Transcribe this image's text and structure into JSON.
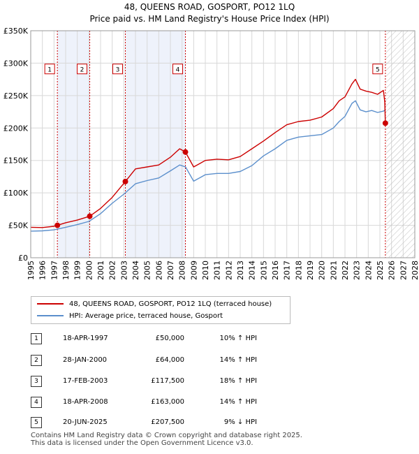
{
  "title": {
    "line1": "48, QUEENS ROAD, GOSPORT, PO12 1LQ",
    "line2": "Price paid vs. HM Land Registry's House Price Index (HPI)"
  },
  "legend": {
    "red_label": "48, QUEENS ROAD, GOSPORT, PO12 1LQ (terraced house)",
    "blue_label": "HPI: Average price, terraced house, Gosport"
  },
  "colors": {
    "price_line": "#cc0000",
    "hpi_line": "#5b8fcc",
    "shade": "#eef2fb",
    "grid": "#d8d8d8",
    "marker_dash": "#cc0000"
  },
  "sales": [
    {
      "num": "1",
      "date": "18-APR-1997",
      "price": "£50,000",
      "hpi": "10% ↑ HPI"
    },
    {
      "num": "2",
      "date": "28-JAN-2000",
      "price": "£64,000",
      "hpi": "14% ↑ HPI"
    },
    {
      "num": "3",
      "date": "17-FEB-2003",
      "price": "£117,500",
      "hpi": "18% ↑ HPI"
    },
    {
      "num": "4",
      "date": "18-APR-2008",
      "price": "£163,000",
      "hpi": "14% ↑ HPI"
    },
    {
      "num": "5",
      "date": "20-JUN-2025",
      "price": "£207,500",
      "hpi": "9% ↓ HPI"
    }
  ],
  "footer": {
    "line1": "Contains HM Land Registry data © Crown copyright and database right 2025.",
    "line2": "This data is licensed under the Open Government Licence v3.0."
  },
  "chart_data": {
    "type": "line",
    "title": "48, QUEENS ROAD, GOSPORT, PO12 1LQ — Price paid vs. HM Land Registry's House Price Index (HPI)",
    "xlim": [
      1995,
      2028
    ],
    "ylim": [
      0,
      350000
    ],
    "x_ticks": [
      "1995",
      "1996",
      "1997",
      "1998",
      "1999",
      "2000",
      "2001",
      "2002",
      "2003",
      "2004",
      "2005",
      "2006",
      "2007",
      "2008",
      "2009",
      "2010",
      "2011",
      "2012",
      "2013",
      "2014",
      "2015",
      "2016",
      "2017",
      "2018",
      "2019",
      "2020",
      "2021",
      "2022",
      "2023",
      "2024",
      "2025",
      "2026",
      "2027",
      "2028"
    ],
    "y_ticks": [
      {
        "value": 0,
        "label": "£0"
      },
      {
        "value": 50000,
        "label": "£50K"
      },
      {
        "value": 100000,
        "label": "£100K"
      },
      {
        "value": 150000,
        "label": "£150K"
      },
      {
        "value": 200000,
        "label": "£200K"
      },
      {
        "value": 250000,
        "label": "£250K"
      },
      {
        "value": 300000,
        "label": "£300K"
      },
      {
        "value": 350000,
        "label": "£350K"
      }
    ],
    "shaded_periods": [
      [
        1997.29,
        2000.07
      ],
      [
        2003.13,
        2008.29
      ]
    ],
    "future_hatch_from": 2025.5,
    "sale_markers": [
      {
        "label": "1",
        "x": 1997.29,
        "y": 50000
      },
      {
        "label": "2",
        "x": 2000.07,
        "y": 64000
      },
      {
        "label": "3",
        "x": 2003.13,
        "y": 117500
      },
      {
        "label": "4",
        "x": 2008.29,
        "y": 163000
      },
      {
        "label": "5",
        "x": 2025.47,
        "y": 207500
      }
    ],
    "series": [
      {
        "name": "48, QUEENS ROAD, GOSPORT, PO12 1LQ (terraced house)",
        "x": [
          1995.0,
          1996.0,
          1997.0,
          1997.29,
          1998.0,
          1999.0,
          2000.07,
          2001.0,
          2002.0,
          2003.13,
          2004.0,
          2005.0,
          2006.0,
          2007.0,
          2007.8,
          2008.29,
          2009.0,
          2009.5,
          2010.0,
          2011.0,
          2012.0,
          2013.0,
          2014.0,
          2015.0,
          2016.0,
          2017.0,
          2018.0,
          2019.0,
          2020.0,
          2021.0,
          2021.5,
          2022.0,
          2022.6,
          2022.9,
          2023.3,
          2023.8,
          2024.3,
          2024.8,
          2025.3,
          2025.42,
          2025.47
        ],
        "y": [
          47000,
          46500,
          48500,
          50000,
          54000,
          58000,
          64000,
          76000,
          93000,
          117500,
          137000,
          140000,
          143000,
          155000,
          168000,
          163000,
          140000,
          145000,
          150000,
          152000,
          151000,
          156000,
          168000,
          180000,
          193000,
          205000,
          210000,
          212000,
          217000,
          230000,
          242000,
          248000,
          268000,
          275000,
          260000,
          257000,
          255000,
          252000,
          258000,
          240000,
          207500
        ]
      },
      {
        "name": "HPI: Average price, terraced house, Gosport",
        "x": [
          1995.0,
          1996.0,
          1997.0,
          1998.0,
          1999.0,
          2000.0,
          2001.0,
          2002.0,
          2003.0,
          2004.0,
          2005.0,
          2006.0,
          2007.0,
          2007.8,
          2008.3,
          2009.0,
          2009.5,
          2010.0,
          2011.0,
          2012.0,
          2013.0,
          2014.0,
          2015.0,
          2016.0,
          2017.0,
          2018.0,
          2019.0,
          2020.0,
          2021.0,
          2021.5,
          2022.0,
          2022.6,
          2022.9,
          2023.3,
          2023.8,
          2024.3,
          2024.8,
          2025.3,
          2025.47
        ],
        "y": [
          41000,
          41500,
          43000,
          47000,
          51000,
          56000,
          68000,
          84000,
          98000,
          114000,
          119000,
          123000,
          134000,
          143000,
          140000,
          118000,
          123000,
          128000,
          130000,
          130000,
          133000,
          142000,
          157000,
          168000,
          181000,
          186000,
          188000,
          190000,
          200000,
          210000,
          218000,
          238000,
          242000,
          228000,
          225000,
          227000,
          224000,
          226000,
          228000
        ]
      }
    ]
  }
}
